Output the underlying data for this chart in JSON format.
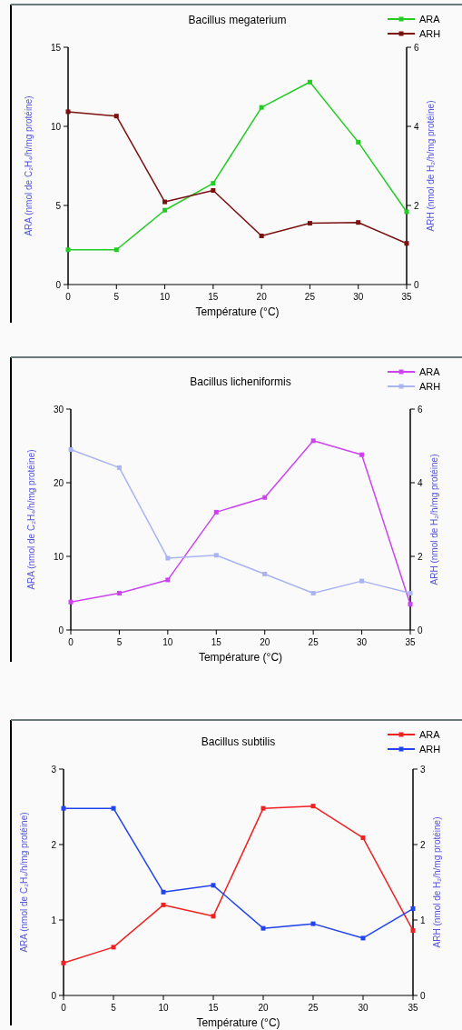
{
  "chart_data": [
    {
      "type": "line",
      "title": "Bacillus megaterium",
      "xlabel": "Température (°C)",
      "ylabel": "ARA (nmol de C₂H₄/h/mg protéine)",
      "y2label": "ARH (nmol de H₂/h/mg protéine)",
      "x": [
        0,
        5,
        10,
        15,
        20,
        25,
        30,
        35
      ],
      "xlim": [
        0,
        35
      ],
      "xticks": [
        0,
        5,
        10,
        15,
        20,
        25,
        30,
        35
      ],
      "ylim": [
        0,
        15
      ],
      "yticks": [
        0,
        5,
        10,
        15
      ],
      "y2lim": [
        0,
        6
      ],
      "y2ticks": [
        0,
        2,
        4,
        6
      ],
      "legend": "top right",
      "marker": "square",
      "series": [
        {
          "name": "ARA",
          "color": "#22cc22",
          "values": [
            2.2,
            2.2,
            4.7,
            6.4,
            11.2,
            12.8,
            9.0,
            4.6
          ]
        },
        {
          "name": "ARH",
          "color": "#7a1010",
          "axis": "y2",
          "values": [
            4.37,
            4.26,
            2.09,
            2.38,
            1.23,
            1.55,
            1.57,
            1.04
          ]
        }
      ]
    },
    {
      "type": "line",
      "title": "Bacillus licheniformis",
      "xlabel": "Température (°C)",
      "ylabel": "ARA (nmol de C₂H₄/h/mg protéine)",
      "y2label": "ARH (nmol de H₂/h/mg protéine)",
      "x": [
        0,
        5,
        10,
        15,
        20,
        25,
        30,
        35
      ],
      "xlim": [
        0,
        35
      ],
      "xticks": [
        0,
        5,
        10,
        15,
        20,
        25,
        30,
        35
      ],
      "ylim": [
        0,
        30
      ],
      "yticks": [
        0,
        10,
        20,
        30
      ],
      "y2lim": [
        0,
        6
      ],
      "y2ticks": [
        0,
        2,
        4,
        6
      ],
      "legend": "top right",
      "marker": "square",
      "series": [
        {
          "name": "ARA",
          "color": "#cc44ee",
          "values": [
            3.8,
            5.0,
            6.8,
            16.0,
            18.0,
            25.7,
            23.8,
            3.5
          ]
        },
        {
          "name": "ARH",
          "color": "#aab4f0",
          "axis": "y2",
          "values": [
            4.9,
            4.41,
            1.95,
            2.03,
            1.52,
            1.0,
            1.33,
            1.0
          ]
        }
      ]
    },
    {
      "type": "line",
      "title": "Bacillus subtilis",
      "xlabel": "Température (°C)",
      "ylabel": "ARA (nmol de C₂H₄/h/mg protéine)",
      "y2label": "ARH (nmol de H₂/h/mg protéine)",
      "x": [
        0,
        5,
        10,
        15,
        20,
        25,
        30,
        35
      ],
      "xlim": [
        0,
        35
      ],
      "xticks": [
        0,
        5,
        10,
        15,
        20,
        25,
        30,
        35
      ],
      "ylim": [
        0,
        3
      ],
      "yticks": [
        0,
        1,
        2,
        3
      ],
      "y2lim": [
        0,
        3
      ],
      "y2ticks": [
        0,
        1,
        2,
        3
      ],
      "legend": "top right",
      "marker": "square",
      "series": [
        {
          "name": "ARA",
          "color": "#ee2222",
          "values": [
            0.43,
            0.64,
            1.2,
            1.05,
            2.48,
            2.51,
            2.09,
            0.86
          ]
        },
        {
          "name": "ARH",
          "color": "#2244ee",
          "axis": "y2",
          "values": [
            2.48,
            2.48,
            1.37,
            1.46,
            0.89,
            0.95,
            0.76,
            1.15
          ]
        }
      ]
    }
  ]
}
